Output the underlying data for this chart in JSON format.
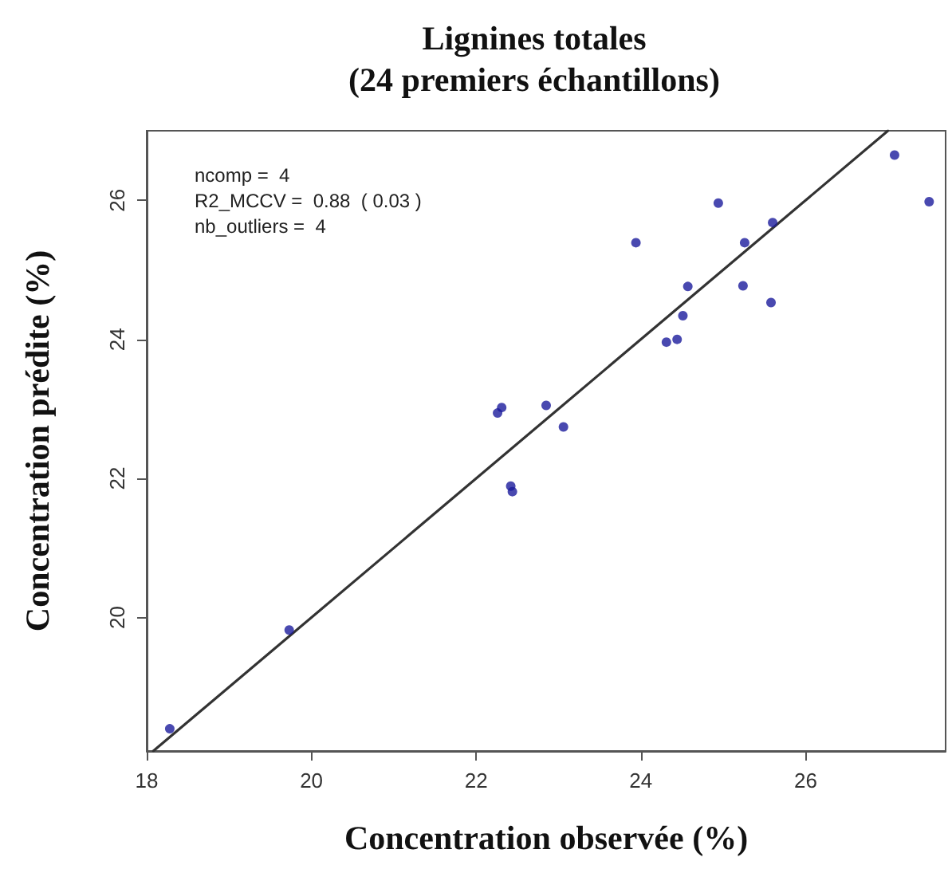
{
  "chart_data": {
    "type": "scatter",
    "title": "Lignines totales\n(24 premiers échantillons)",
    "xlabel": "Concentration observée (%)",
    "ylabel": "Concentration prédite (%)",
    "annotations": [
      "ncomp =  4",
      "R2_MCCV =  0.88  ( 0.03 )",
      "nb_outliers =  4"
    ],
    "series": [
      {
        "color": "#1c1c9c",
        "marker": "circle",
        "x": [
          27.08,
          27.5,
          24.94,
          25.6,
          23.94,
          25.26,
          24.57,
          25.24,
          25.58,
          24.51,
          24.44,
          24.31,
          22.31,
          22.26,
          22.85,
          23.06,
          22.42,
          22.44,
          19.73,
          18.28
        ],
        "values": [
          26.65,
          25.98,
          25.96,
          25.68,
          25.39,
          25.39,
          24.76,
          24.77,
          24.53,
          24.34,
          24.0,
          23.96,
          23.02,
          22.94,
          23.05,
          22.74,
          21.89,
          21.81,
          19.82,
          18.4
        ]
      },
      {
        "type": "line",
        "color": "#333333",
        "line_style": "solid",
        "marker": "none",
        "x": [
          18.08,
          27.0
        ],
        "values": [
          18.08,
          27.0
        ]
      }
    ],
    "xlim": [
      18,
      27.7
    ],
    "ylim": [
      18.08,
      27.0
    ],
    "xticks": [
      18,
      20,
      22,
      24,
      26
    ],
    "yticks": [
      20,
      22,
      24,
      26
    ],
    "grid": false
  }
}
